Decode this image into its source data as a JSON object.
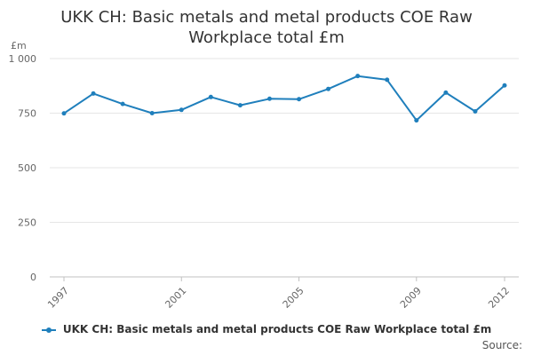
{
  "chart_data": {
    "type": "line",
    "title_lines": [
      "UKK CH: Basic metals and metal products COE Raw",
      "Workplace total £m"
    ],
    "y_unit_label": "£m",
    "ylim": [
      0,
      1000
    ],
    "y_ticks": [
      {
        "value": 0,
        "label": "0"
      },
      {
        "value": 250,
        "label": "250"
      },
      {
        "value": 500,
        "label": "500"
      },
      {
        "value": 750,
        "label": "750"
      },
      {
        "value": 1000,
        "label": "1 000"
      }
    ],
    "x_ticks": [
      "1997",
      "2001",
      "2005",
      "2009",
      "2012"
    ],
    "grid": "horizontal",
    "legend_position": "bottom",
    "series": [
      {
        "name": "UKK CH: Basic metals and metal products COE Raw Workplace total £m",
        "color": "#1f7fbc",
        "points": [
          {
            "x": 1997,
            "y": 749
          },
          {
            "x": 1998,
            "y": 840
          },
          {
            "x": 1999,
            "y": 792
          },
          {
            "x": 2000,
            "y": 750
          },
          {
            "x": 2001,
            "y": 765
          },
          {
            "x": 2002,
            "y": 824
          },
          {
            "x": 2003,
            "y": 786
          },
          {
            "x": 2004,
            "y": 816
          },
          {
            "x": 2005,
            "y": 814
          },
          {
            "x": 2006,
            "y": 861
          },
          {
            "x": 2007,
            "y": 920
          },
          {
            "x": 2008,
            "y": 903
          },
          {
            "x": 2009,
            "y": 717
          },
          {
            "x": 2010,
            "y": 844
          },
          {
            "x": 2011,
            "y": 758
          },
          {
            "x": 2012,
            "y": 877
          }
        ]
      }
    ]
  },
  "footer": {
    "source_label": "Source:"
  }
}
